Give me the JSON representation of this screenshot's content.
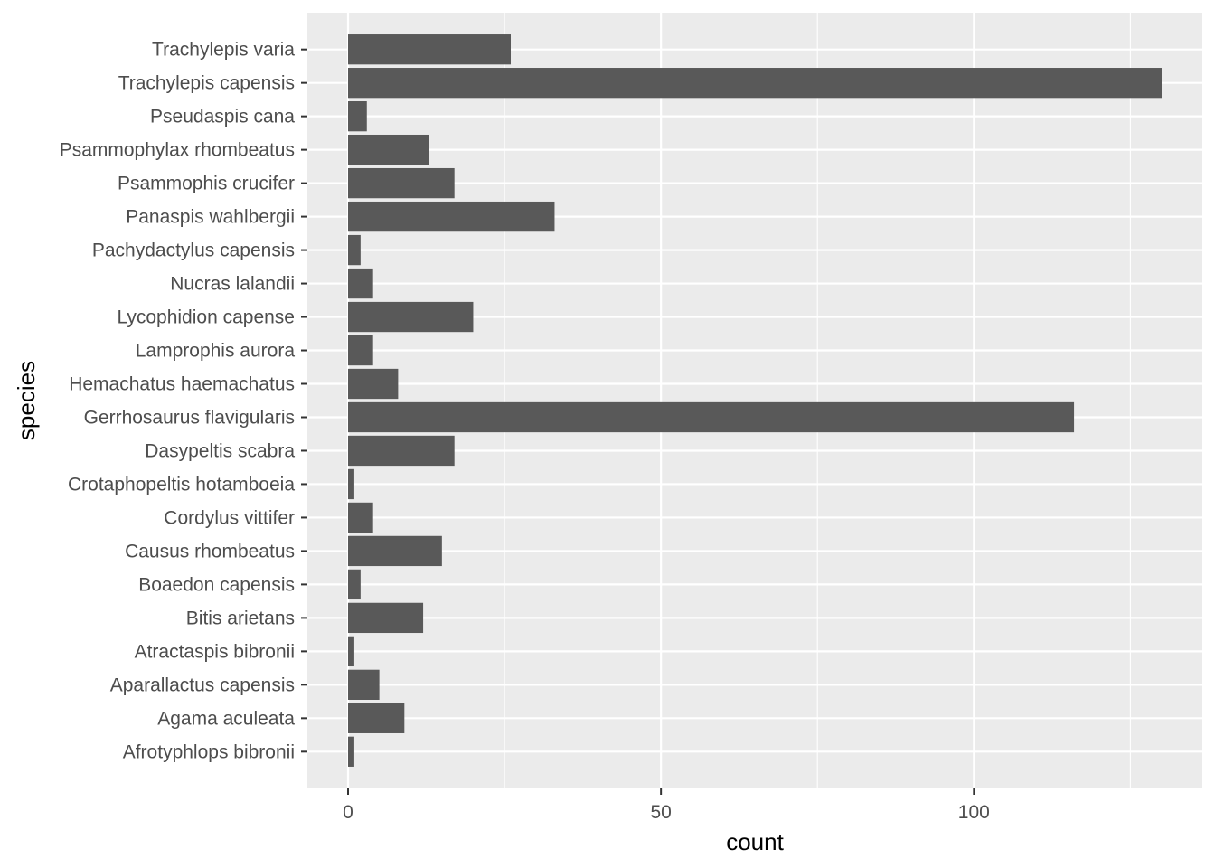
{
  "chart_data": {
    "type": "bar",
    "orientation": "horizontal",
    "title": "",
    "xlabel": "count",
    "ylabel": "species",
    "categories": [
      "Trachylepis varia",
      "Trachylepis capensis",
      "Pseudaspis cana",
      "Psammophylax rhombeatus",
      "Psammophis crucifer",
      "Panaspis wahlbergii",
      "Pachydactylus capensis",
      "Nucras lalandii",
      "Lycophidion capense",
      "Lamprophis aurora",
      "Hemachatus haemachatus",
      "Gerrhosaurus flavigularis",
      "Dasypeltis scabra",
      "Crotaphopeltis hotamboeia",
      "Cordylus vittifer",
      "Causus rhombeatus",
      "Boaedon capensis",
      "Bitis arietans",
      "Atractaspis bibronii",
      "Aparallactus capensis",
      "Agama aculeata",
      "Afrotyphlops bibronii"
    ],
    "values": [
      26,
      130,
      3,
      13,
      17,
      33,
      2,
      4,
      20,
      4,
      8,
      116,
      17,
      1,
      4,
      15,
      2,
      12,
      1,
      5,
      9,
      1
    ],
    "xticks": [
      0,
      50,
      100
    ],
    "xlim": [
      -6.5,
      136.5
    ],
    "grid": true,
    "legend": "none",
    "colors": {
      "bar": "#595959",
      "panel": "#ebebeb",
      "grid": "#ffffff",
      "tick": "#333333"
    }
  }
}
